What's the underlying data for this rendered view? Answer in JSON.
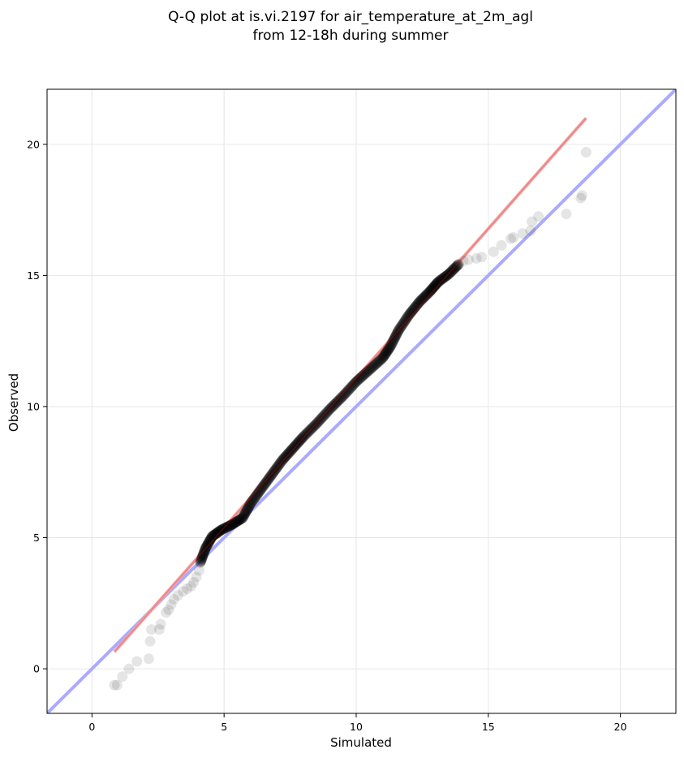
{
  "chart_data": {
    "type": "scatter",
    "title_lines": [
      "Q-Q plot at is.vi.2197 for air_temperature_at_2m_agl",
      "from 12-18h during summer"
    ],
    "xlabel": "Simulated",
    "ylabel": "Observed",
    "xlim": [
      -1.7,
      22.1
    ],
    "ylim": [
      -1.7,
      22.1
    ],
    "xticks": [
      0,
      5,
      10,
      15,
      20
    ],
    "yticks": [
      0,
      5,
      10,
      15,
      20
    ],
    "grid": true,
    "reference_lines": [
      {
        "type": "identity",
        "color": "#aaaaff",
        "x": [
          -1.7,
          22.1
        ],
        "y": [
          -1.7,
          22.1
        ]
      },
      {
        "type": "fit",
        "color": "#f7a8a8",
        "x": [
          0.85,
          18.7
        ],
        "y": [
          0.65,
          21.0
        ]
      }
    ],
    "point_color": "#000000",
    "tail_points": [
      [
        0.85,
        -0.62
      ],
      [
        0.95,
        -0.62
      ],
      [
        1.15,
        -0.3
      ],
      [
        1.4,
        0.0
      ],
      [
        1.7,
        0.28
      ],
      [
        2.15,
        0.38
      ],
      [
        2.2,
        1.05
      ],
      [
        2.25,
        1.5
      ],
      [
        2.55,
        1.5
      ],
      [
        2.6,
        1.7
      ],
      [
        2.8,
        2.15
      ],
      [
        2.9,
        2.25
      ],
      [
        3.0,
        2.45
      ],
      [
        3.1,
        2.65
      ],
      [
        3.25,
        2.8
      ],
      [
        3.45,
        2.95
      ],
      [
        3.6,
        3.05
      ],
      [
        3.75,
        3.15
      ],
      [
        3.85,
        3.3
      ],
      [
        3.95,
        3.5
      ],
      [
        4.05,
        3.75
      ],
      [
        14.05,
        15.55
      ],
      [
        14.25,
        15.6
      ],
      [
        14.55,
        15.65
      ],
      [
        14.75,
        15.7
      ],
      [
        15.2,
        15.9
      ],
      [
        15.5,
        16.15
      ],
      [
        15.85,
        16.4
      ],
      [
        15.95,
        16.45
      ],
      [
        16.3,
        16.6
      ],
      [
        16.6,
        16.7
      ],
      [
        16.65,
        17.05
      ],
      [
        16.9,
        17.25
      ],
      [
        17.95,
        17.35
      ],
      [
        18.5,
        17.95
      ],
      [
        18.55,
        18.05
      ],
      [
        18.7,
        19.7
      ]
    ],
    "body_curve": [
      [
        4.1,
        4.05
      ],
      [
        4.3,
        4.6
      ],
      [
        4.55,
        5.05
      ],
      [
        4.9,
        5.3
      ],
      [
        5.3,
        5.5
      ],
      [
        5.7,
        5.75
      ],
      [
        6.0,
        6.3
      ],
      [
        6.4,
        6.85
      ],
      [
        6.8,
        7.4
      ],
      [
        7.2,
        7.95
      ],
      [
        7.6,
        8.4
      ],
      [
        8.0,
        8.85
      ],
      [
        8.5,
        9.35
      ],
      [
        9.0,
        9.9
      ],
      [
        9.5,
        10.4
      ],
      [
        10.0,
        10.95
      ],
      [
        10.5,
        11.4
      ],
      [
        11.0,
        11.85
      ],
      [
        11.3,
        12.3
      ],
      [
        11.6,
        12.9
      ],
      [
        12.0,
        13.5
      ],
      [
        12.4,
        14.0
      ],
      [
        12.8,
        14.4
      ],
      [
        13.1,
        14.75
      ],
      [
        13.5,
        15.05
      ],
      [
        13.9,
        15.45
      ]
    ]
  }
}
